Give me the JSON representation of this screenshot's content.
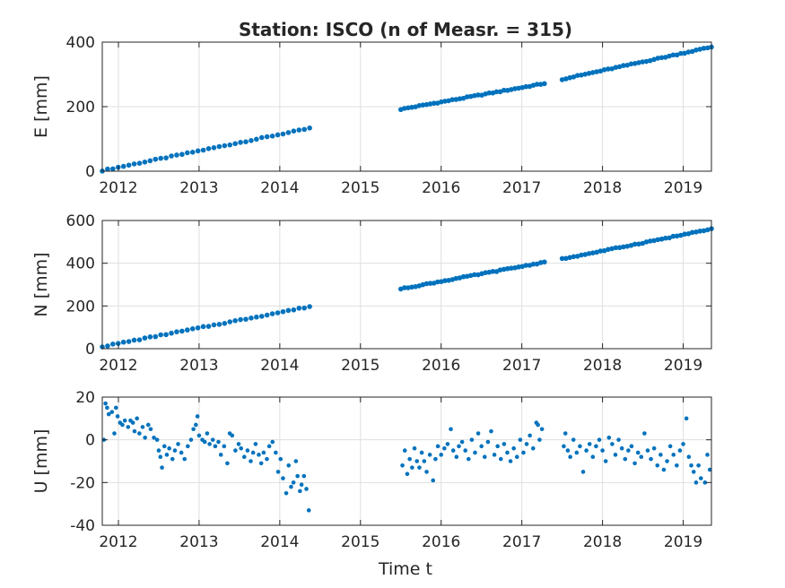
{
  "figure": {
    "title": "Station: ISCO (n of Measr. = 315)",
    "xlabel": "Time t",
    "marker_color": "#0072BD",
    "grid_color": "#dfdfdf",
    "axes_color": "#262626"
  },
  "chart_data": [
    {
      "type": "scatter",
      "panel": "E",
      "ylabel": "E [mm]",
      "xlim": [
        2011.8,
        2019.35
      ],
      "ylim": [
        0,
        400
      ],
      "xticks": [
        2012,
        2013,
        2014,
        2015,
        2016,
        2017,
        2018,
        2019
      ],
      "yticks": [
        0,
        200,
        400
      ],
      "grid": true,
      "series": [
        {
          "segments": [
            {
              "x_start": 2011.8,
              "x_end": 2014.37,
              "y_start": 2,
              "y_end": 133
            },
            {
              "x_start": 2015.5,
              "x_end": 2017.28,
              "y_start": 192,
              "y_end": 272
            },
            {
              "x_start": 2017.5,
              "x_end": 2019.35,
              "y_start": 285,
              "y_end": 385
            }
          ]
        }
      ]
    },
    {
      "type": "scatter",
      "panel": "N",
      "ylabel": "N [mm]",
      "xlim": [
        2011.8,
        2019.35
      ],
      "ylim": [
        0,
        600
      ],
      "xticks": [
        2012,
        2013,
        2014,
        2015,
        2016,
        2017,
        2018,
        2019
      ],
      "yticks": [
        0,
        200,
        400,
        600
      ],
      "grid": true,
      "series": [
        {
          "segments": [
            {
              "x_start": 2011.8,
              "x_end": 2014.37,
              "y_start": 10,
              "y_end": 197
            },
            {
              "x_start": 2015.5,
              "x_end": 2017.28,
              "y_start": 280,
              "y_end": 405
            },
            {
              "x_start": 2017.5,
              "x_end": 2019.35,
              "y_start": 420,
              "y_end": 560
            }
          ]
        }
      ]
    },
    {
      "type": "scatter",
      "panel": "U",
      "ylabel": "U [mm]",
      "xlim": [
        2011.8,
        2019.35
      ],
      "ylim": [
        -40,
        20
      ],
      "xticks": [
        2012,
        2013,
        2014,
        2015,
        2016,
        2017,
        2018,
        2019
      ],
      "yticks": [
        -40,
        -20,
        0,
        20
      ],
      "grid": true,
      "series": [
        {
          "points": [
            [
              2011.82,
              0
            ],
            [
              2011.84,
              17
            ],
            [
              2011.86,
              15
            ],
            [
              2011.88,
              12
            ],
            [
              2011.92,
              13
            ],
            [
              2011.95,
              3
            ],
            [
              2011.97,
              15
            ],
            [
              2011.99,
              11
            ],
            [
              2012.02,
              8
            ],
            [
              2012.05,
              7
            ],
            [
              2012.08,
              9
            ],
            [
              2012.12,
              6
            ],
            [
              2012.15,
              9
            ],
            [
              2012.18,
              8
            ],
            [
              2012.2,
              4
            ],
            [
              2012.23,
              10
            ],
            [
              2012.26,
              3
            ],
            [
              2012.3,
              6
            ],
            [
              2012.33,
              1
            ],
            [
              2012.37,
              7
            ],
            [
              2012.4,
              5
            ],
            [
              2012.44,
              1
            ],
            [
              2012.48,
              0
            ],
            [
              2012.5,
              -5
            ],
            [
              2012.52,
              -8
            ],
            [
              2012.54,
              -13
            ],
            [
              2012.57,
              -3
            ],
            [
              2012.6,
              -7
            ],
            [
              2012.63,
              -4
            ],
            [
              2012.67,
              -9
            ],
            [
              2012.7,
              -5
            ],
            [
              2012.74,
              -2
            ],
            [
              2012.78,
              -6
            ],
            [
              2012.82,
              -9
            ],
            [
              2012.86,
              -3
            ],
            [
              2012.9,
              0
            ],
            [
              2012.93,
              5
            ],
            [
              2012.96,
              7
            ],
            [
              2012.98,
              11
            ],
            [
              2013.0,
              2
            ],
            [
              2013.04,
              0
            ],
            [
              2013.07,
              -1
            ],
            [
              2013.1,
              3
            ],
            [
              2013.13,
              -2
            ],
            [
              2013.17,
              0
            ],
            [
              2013.2,
              -3
            ],
            [
              2013.24,
              -1
            ],
            [
              2013.27,
              -7
            ],
            [
              2013.31,
              -3
            ],
            [
              2013.35,
              -11
            ],
            [
              2013.38,
              3
            ],
            [
              2013.41,
              2
            ],
            [
              2013.45,
              -5
            ],
            [
              2013.49,
              -2
            ],
            [
              2013.52,
              -4
            ],
            [
              2013.56,
              -8
            ],
            [
              2013.6,
              -5
            ],
            [
              2013.64,
              -10
            ],
            [
              2013.67,
              -6
            ],
            [
              2013.7,
              -2
            ],
            [
              2013.74,
              -7
            ],
            [
              2013.77,
              -11
            ],
            [
              2013.8,
              -6
            ],
            [
              2013.84,
              -9
            ],
            [
              2013.87,
              -3
            ],
            [
              2013.91,
              -1
            ],
            [
              2013.95,
              -6
            ],
            [
              2013.98,
              -15
            ],
            [
              2014.01,
              -9
            ],
            [
              2014.04,
              -18
            ],
            [
              2014.08,
              -25
            ],
            [
              2014.11,
              -12
            ],
            [
              2014.14,
              -22
            ],
            [
              2014.17,
              -20
            ],
            [
              2014.2,
              -10
            ],
            [
              2014.22,
              -17
            ],
            [
              2014.25,
              -24
            ],
            [
              2014.27,
              -21
            ],
            [
              2014.3,
              -17
            ],
            [
              2014.33,
              -23
            ],
            [
              2014.36,
              -33
            ],
            [
              2015.52,
              -12
            ],
            [
              2015.55,
              -5
            ],
            [
              2015.58,
              -16
            ],
            [
              2015.61,
              -9
            ],
            [
              2015.64,
              -13
            ],
            [
              2015.67,
              -4
            ],
            [
              2015.7,
              -10
            ],
            [
              2015.73,
              -13
            ],
            [
              2015.76,
              -6
            ],
            [
              2015.79,
              -10
            ],
            [
              2015.82,
              -15
            ],
            [
              2015.86,
              -7
            ],
            [
              2015.9,
              -19
            ],
            [
              2015.93,
              -9
            ],
            [
              2015.96,
              -3
            ],
            [
              2016.0,
              -7
            ],
            [
              2016.04,
              -4
            ],
            [
              2016.08,
              -2
            ],
            [
              2016.12,
              5
            ],
            [
              2016.15,
              -5
            ],
            [
              2016.19,
              -8
            ],
            [
              2016.22,
              -3
            ],
            [
              2016.26,
              -1
            ],
            [
              2016.3,
              -5
            ],
            [
              2016.34,
              -9
            ],
            [
              2016.38,
              0
            ],
            [
              2016.42,
              -6
            ],
            [
              2016.46,
              3
            ],
            [
              2016.5,
              -3
            ],
            [
              2016.54,
              -8
            ],
            [
              2016.58,
              -1
            ],
            [
              2016.62,
              4
            ],
            [
              2016.66,
              -7
            ],
            [
              2016.7,
              -3
            ],
            [
              2016.74,
              -9
            ],
            [
              2016.78,
              -2
            ],
            [
              2016.82,
              -6
            ],
            [
              2016.86,
              -10
            ],
            [
              2016.9,
              -4
            ],
            [
              2016.94,
              -8
            ],
            [
              2016.98,
              0
            ],
            [
              2017.02,
              -6
            ],
            [
              2017.06,
              -2
            ],
            [
              2017.1,
              2
            ],
            [
              2017.14,
              -4
            ],
            [
              2017.18,
              8
            ],
            [
              2017.2,
              7
            ],
            [
              2017.22,
              0
            ],
            [
              2017.25,
              5
            ],
            [
              2017.52,
              -3
            ],
            [
              2017.54,
              3
            ],
            [
              2017.57,
              -5
            ],
            [
              2017.6,
              -8
            ],
            [
              2017.64,
              0
            ],
            [
              2017.68,
              -6
            ],
            [
              2017.72,
              -3
            ],
            [
              2017.76,
              -15
            ],
            [
              2017.8,
              -5
            ],
            [
              2017.84,
              -2
            ],
            [
              2017.88,
              -8
            ],
            [
              2017.92,
              -3
            ],
            [
              2017.96,
              0
            ],
            [
              2018.0,
              -5
            ],
            [
              2018.04,
              -10
            ],
            [
              2018.08,
              1
            ],
            [
              2018.12,
              -2
            ],
            [
              2018.16,
              -7
            ],
            [
              2018.2,
              0
            ],
            [
              2018.24,
              -4
            ],
            [
              2018.28,
              -9
            ],
            [
              2018.32,
              -5
            ],
            [
              2018.36,
              -3
            ],
            [
              2018.4,
              -11
            ],
            [
              2018.44,
              -6
            ],
            [
              2018.48,
              -8
            ],
            [
              2018.52,
              3
            ],
            [
              2018.56,
              -5
            ],
            [
              2018.6,
              -9
            ],
            [
              2018.64,
              -4
            ],
            [
              2018.68,
              -12
            ],
            [
              2018.72,
              -7
            ],
            [
              2018.76,
              -14
            ],
            [
              2018.8,
              -10
            ],
            [
              2018.84,
              -3
            ],
            [
              2018.88,
              -7
            ],
            [
              2018.92,
              -12
            ],
            [
              2018.96,
              -5
            ],
            [
              2019.0,
              -2
            ],
            [
              2019.04,
              10
            ],
            [
              2019.07,
              -8
            ],
            [
              2019.1,
              -12
            ],
            [
              2019.13,
              -15
            ],
            [
              2019.16,
              -20
            ],
            [
              2019.19,
              -12
            ],
            [
              2019.22,
              -18
            ],
            [
              2019.27,
              -20
            ],
            [
              2019.3,
              -7
            ],
            [
              2019.33,
              -14
            ]
          ]
        }
      ]
    }
  ]
}
